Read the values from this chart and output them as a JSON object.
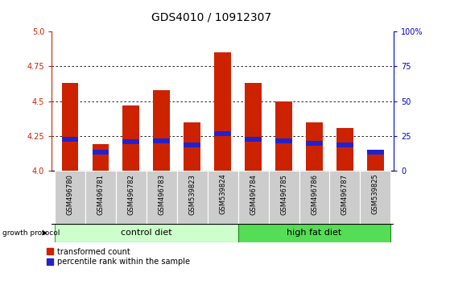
{
  "title": "GDS4010 / 10912307",
  "samples": [
    "GSM496780",
    "GSM496781",
    "GSM496782",
    "GSM496783",
    "GSM539823",
    "GSM539824",
    "GSM496784",
    "GSM496785",
    "GSM496786",
    "GSM496787",
    "GSM539825"
  ],
  "red_values": [
    4.63,
    4.19,
    4.47,
    4.58,
    4.35,
    4.85,
    4.63,
    4.5,
    4.35,
    4.31,
    4.13
  ],
  "blue_values": [
    4.21,
    4.12,
    4.19,
    4.2,
    4.17,
    4.25,
    4.21,
    4.2,
    4.18,
    4.17,
    4.12
  ],
  "blue_heights": [
    0.035,
    0.035,
    0.035,
    0.035,
    0.035,
    0.035,
    0.035,
    0.035,
    0.035,
    0.035,
    0.035
  ],
  "ylim": [
    4.0,
    5.0
  ],
  "yticks_left": [
    4.0,
    4.25,
    4.5,
    4.75,
    5.0
  ],
  "yticks_right_vals": [
    0,
    25,
    50,
    75,
    100
  ],
  "yticks_right_pos": [
    4.0,
    4.25,
    4.5,
    4.75,
    5.0
  ],
  "control_diet_indices": [
    0,
    1,
    2,
    3,
    4,
    5
  ],
  "high_fat_indices": [
    6,
    7,
    8,
    9,
    10
  ],
  "control_label": "control diet",
  "high_fat_label": "high fat diet",
  "growth_protocol_label": "growth protocol",
  "legend_red": "transformed count",
  "legend_blue": "percentile rank within the sample",
  "bar_width": 0.55,
  "red_color": "#cc2200",
  "blue_color": "#2222cc",
  "control_bg": "#ccffcc",
  "high_fat_bg": "#55dd55",
  "tick_bg": "#cccccc",
  "right_axis_color": "#0000cc",
  "left_axis_color": "#cc2200",
  "title_fontsize": 10,
  "tick_fontsize": 7,
  "sample_fontsize": 6,
  "label_fontsize": 7.5,
  "proto_fontsize": 8
}
